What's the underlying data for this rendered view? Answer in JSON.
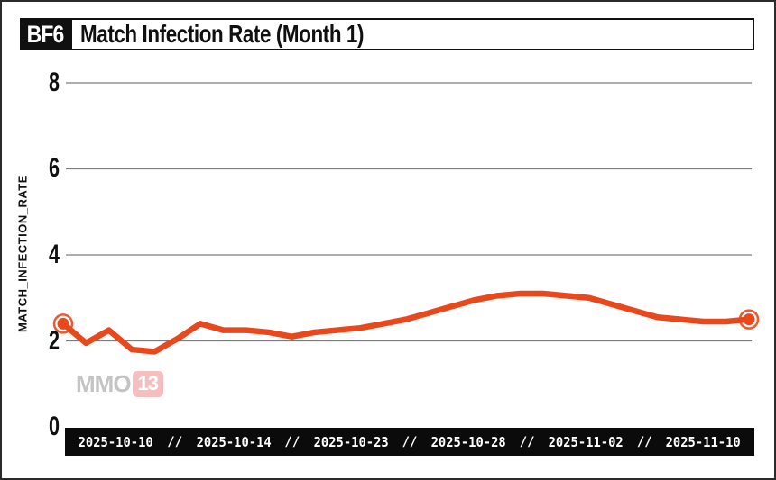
{
  "header": {
    "badge": "BF6",
    "title": "Match Infection Rate (Month 1)"
  },
  "axis": {
    "separator": "//"
  },
  "watermark": {
    "prefix": "MMO",
    "suffix": "13"
  },
  "colors": {
    "line": "#e8481c",
    "grid": "#7d7d7d",
    "bar_background": "#0b0b0b",
    "badge_background": "#101010",
    "watermark_badge": "#ee8080"
  },
  "chart_data": {
    "type": "line",
    "title": "Match Infection Rate (Month 1)",
    "xlabel": "",
    "ylabel": "MATCH_INFECTION_RATE",
    "ylim": [
      0,
      8
    ],
    "yticks": [
      8,
      6,
      4,
      2,
      0
    ],
    "grid": "horizontal",
    "legend": "none",
    "markers": "endpoints",
    "categories": [
      "2025-10-10",
      "2025-10-14",
      "2025-10-23",
      "2025-10-28",
      "2025-11-02",
      "2025-11-10"
    ],
    "series": [
      {
        "name": "match_infection_rate",
        "color": "#e8481c",
        "values": [
          2.4,
          1.95,
          2.25,
          1.8,
          1.75,
          2.05,
          2.4,
          2.25,
          2.25,
          2.2,
          2.1,
          2.2,
          2.25,
          2.3,
          2.4,
          2.5,
          2.65,
          2.8,
          2.95,
          3.05,
          3.1,
          3.1,
          3.05,
          3.0,
          2.85,
          2.7,
          2.55,
          2.5,
          2.45,
          2.45,
          2.5
        ]
      }
    ]
  }
}
